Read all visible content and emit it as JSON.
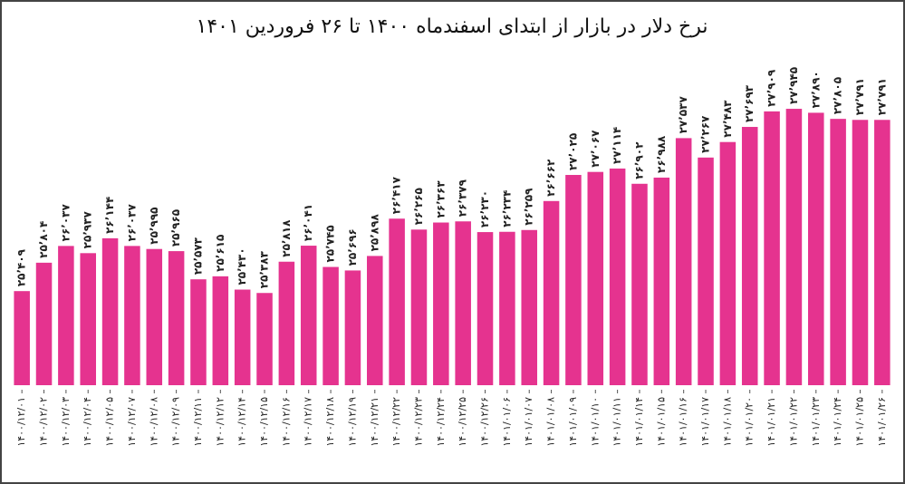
{
  "chart_data": {
    "type": "bar",
    "title": "نرخ دلار در بازار از ابتدای اسفندماه ۱۴۰۰ تا ۲۶ فروردین ۱۴۰۱",
    "color": "#e5338f",
    "ylim": [
      24100,
      28450
    ],
    "categories": [
      "۱۴۰۰/۱۲/۰۱",
      "۱۴۰۰/۱۲/۰۲",
      "۱۴۰۰/۱۲/۰۳",
      "۱۴۰۰/۱۲/۰۴",
      "۱۴۰۰/۱۲/۰۵",
      "۱۴۰۰/۱۲/۰۷",
      "۱۴۰۰/۱۲/۰۸",
      "۱۴۰۰/۱۲/۰۹",
      "۱۴۰۰/۱۲/۱۱",
      "۱۴۰۰/۱۲/۱۲",
      "۱۴۰۰/۱۲/۱۴",
      "۱۴۰۰/۱۲/۱۵",
      "۱۴۰۰/۱۲/۱۶",
      "۱۴۰۰/۱۲/۱۷",
      "۱۴۰۰/۱۲/۱۸",
      "۱۴۰۰/۱۲/۱۹",
      "۱۴۰۰/۱۲/۲۱",
      "۱۴۰۰/۱۲/۲۲",
      "۱۴۰۰/۱۲/۲۳",
      "۱۴۰۰/۱۲/۲۴",
      "۱۴۰۰/۱۲/۲۵",
      "۱۴۰۰/۱۲/۲۶",
      "۱۴۰۱/۰۱/۰۶",
      "۱۴۰۱/۰۱/۰۷",
      "۱۴۰۱/۰۱/۰۸",
      "۱۴۰۱/۰۱/۰۹",
      "۱۴۰۱/۰۱/۱۰",
      "۱۴۰۱/۰۱/۱۱",
      "۱۴۰۱/۰۱/۱۴",
      "۱۴۰۱/۰۱/۱۵",
      "۱۴۰۱/۰۱/۱۶",
      "۱۴۰۱/۰۱/۱۷",
      "۱۴۰۱/۰۱/۱۸",
      "۱۴۰۱/۰۱/۲۰",
      "۱۴۰۱/۰۱/۲۱",
      "۱۴۰۱/۰۱/۲۲",
      "۱۴۰۱/۰۱/۲۳",
      "۱۴۰۱/۰۱/۲۴",
      "۱۴۰۱/۰۱/۲۵",
      "۱۴۰۱/۰۱/۲۶"
    ],
    "values": [
      25409,
      25804,
      26037,
      25937,
      26144,
      26037,
      25995,
      25965,
      25573,
      25615,
      25430,
      25383,
      25818,
      26041,
      25745,
      25696,
      25898,
      26417,
      26265,
      26363,
      26379,
      26230,
      26234,
      26259,
      26662,
      27025,
      27067,
      27114,
      26902,
      26988,
      27537,
      27267,
      27483,
      27693,
      27909,
      27945,
      27890,
      27805,
      27791,
      27791
    ],
    "value_labels": [
      "۲۵٬۴۰۹",
      "۲۵٬۸۰۴",
      "۲۶٬۰۳۷",
      "۲۵٬۹۳۷",
      "۲۶٬۱۴۴",
      "۲۶٬۰۳۷",
      "۲۵٬۹۹۵",
      "۲۵٬۹۶۵",
      "۲۵٬۵۷۳",
      "۲۵٬۶۱۵",
      "۲۵٬۴۳۰",
      "۲۵٬۳۸۳",
      "۲۵٬۸۱۸",
      "۲۶٬۰۴۱",
      "۲۵٬۷۴۵",
      "۲۵٬۶۹۶",
      "۲۵٬۸۹۸",
      "۲۶٬۴۱۷",
      "۲۶٬۲۶۵",
      "۲۶٬۳۶۳",
      "۲۶٬۳۷۹",
      "۲۶٬۲۳۰",
      "۲۶٬۲۳۴",
      "۲۶٬۲۵۹",
      "۲۶٬۶۶۲",
      "۲۷٬۰۲۵",
      "۲۷٬۰۶۷",
      "۲۷٬۱۱۴",
      "۲۶٬۹۰۲",
      "۲۶٬۹۸۸",
      "۲۷٬۵۳۷",
      "۲۷٬۲۶۷",
      "۲۷٬۴۸۳",
      "۲۷٬۶۹۳",
      "۲۷٬۹۰۹",
      "۲۷٬۹۴۵",
      "۲۷٬۸۹۰",
      "۲۷٬۸۰۵",
      "۲۷٬۷۹۱",
      "۲۷٬۷۹۱"
    ]
  }
}
